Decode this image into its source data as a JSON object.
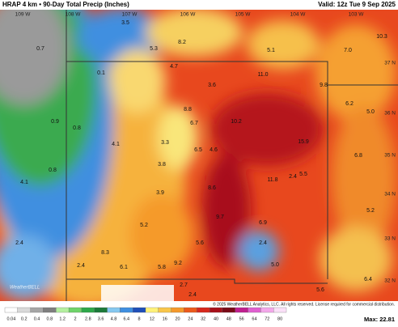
{
  "header": {
    "title": "HRAP 4 km • 90-Day Total Precip (Inches)",
    "valid": "Valid: 12z Tue 9 Sep 2025"
  },
  "longitude_labels": [
    "109 W",
    "108 W",
    "107 W",
    "106 W",
    "105 W",
    "104 W",
    "103 W"
  ],
  "latitude_labels": [
    "37 N",
    "36 N",
    "35 N",
    "34 N",
    "33 N",
    "32 N"
  ],
  "map_labels": [
    "3.5",
    "8.2",
    "5.1",
    "0.7",
    "5.3",
    "7.0",
    "10.3",
    "0.1",
    "4.7",
    "11.0",
    "3.6",
    "9.8",
    "6.2",
    "5.0",
    "0.9",
    "8.8",
    "10.2",
    "6.7",
    "0.8",
    "15.9",
    "4.1",
    "3.3",
    "6.5",
    "4.6",
    "6.8",
    "3.8",
    "4.1",
    "0.8",
    "11.8",
    "2.4",
    "5.5",
    "3.9",
    "8.6",
    "5.2",
    "9.7",
    "6.9",
    "5.2",
    "2.4",
    "5.6",
    "2.4",
    "8.3",
    "9.2",
    "5.0",
    "6.1",
    "5.8",
    "2.4",
    "2.7",
    "2.4",
    "5.6",
    "6.4"
  ],
  "colorbar": {
    "labels": [
      "0.04",
      "0.2",
      "0.4",
      "0.8",
      "1.2",
      "2",
      "2.8",
      "3.6",
      "4.8",
      "6.4",
      "8",
      "12",
      "16",
      "20",
      "24",
      "32",
      "40",
      "48",
      "56",
      "64",
      "72",
      "80"
    ],
    "colors": [
      "#ffffff",
      "#d9d9d9",
      "#a6a6a6",
      "#7f7f7f",
      "#b4f0a0",
      "#6fd36a",
      "#2ea84a",
      "#1c7a3a",
      "#86c8f0",
      "#3f8fe0",
      "#1f4fb8",
      "#fff27a",
      "#f9c64a",
      "#f59a2c",
      "#ec5a1c",
      "#d7281c",
      "#a8101a",
      "#7a0a18",
      "#c02090",
      "#e060d0",
      "#f3a8ea",
      "#fbe0f8"
    ]
  },
  "copyright": "© 2025 WeatherBELL Analytics, LLC. All rights reserved. License required for commercial distribution.",
  "logo": "WeatherBELL",
  "max": "Max: 22.81"
}
